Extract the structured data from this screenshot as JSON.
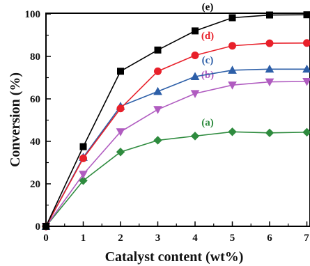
{
  "chart_data": {
    "type": "line",
    "xlabel": "Catalyst content (wt%)",
    "ylabel": "Conversion (%)",
    "xlim": [
      0,
      7
    ],
    "ylim": [
      0,
      100
    ],
    "xticks": [
      "0",
      "1",
      "2",
      "3",
      "4",
      "5",
      "6",
      "7"
    ],
    "yticks": [
      "0",
      "20",
      "40",
      "60",
      "80",
      "100"
    ],
    "grid": false,
    "x": [
      0,
      1,
      2,
      3,
      4,
      5,
      6,
      7
    ],
    "series": [
      {
        "name": "(a)",
        "color": "#2e8b3e",
        "marker": "diamond",
        "values": [
          0,
          21.5,
          35,
          40.5,
          42.5,
          44.5,
          44,
          44.3
        ]
      },
      {
        "name": "(b)",
        "color": "#b05cc0",
        "marker": "triangle-down",
        "values": [
          0,
          24.5,
          44.5,
          55,
          62.5,
          66.5,
          68,
          68.2
        ]
      },
      {
        "name": "(c)",
        "color": "#2d5fa8",
        "marker": "triangle-up",
        "values": [
          0,
          32.5,
          56.5,
          63.5,
          70.5,
          73.5,
          74,
          74
        ]
      },
      {
        "name": "(d)",
        "color": "#e8202a",
        "marker": "circle",
        "values": [
          0,
          32,
          55.5,
          73,
          80.5,
          85,
          86.2,
          86.3
        ]
      },
      {
        "name": "(e)",
        "color": "#000000",
        "marker": "square",
        "values": [
          0,
          37.5,
          73,
          83,
          92,
          98.2,
          99.5,
          99.6
        ]
      }
    ]
  }
}
